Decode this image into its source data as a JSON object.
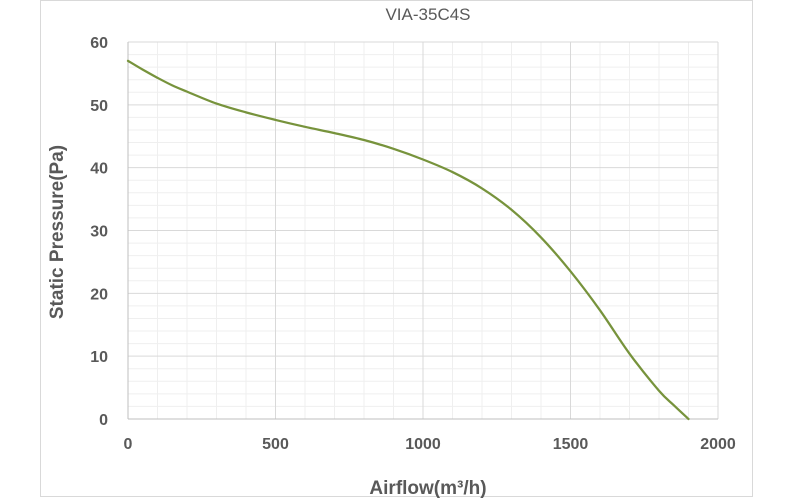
{
  "chart_data": {
    "type": "line",
    "title": "VIA-35C4S",
    "xlabel": "Airflow(m³/h)",
    "ylabel": "Static Pressure(Pa)",
    "xlim": [
      0,
      2000
    ],
    "ylim": [
      0,
      60
    ],
    "x_ticks": [
      0,
      500,
      1000,
      1500,
      2000
    ],
    "y_ticks": [
      0,
      10,
      20,
      30,
      40,
      50,
      60
    ],
    "grid": "major and minor",
    "legend": "none",
    "line_color": "#77933c",
    "series": [
      {
        "x": [
          0,
          50,
          100,
          150,
          200,
          300,
          400,
          500,
          600,
          700,
          800,
          900,
          1000,
          1100,
          1200,
          1300,
          1400,
          1500,
          1600,
          1700,
          1800,
          1850,
          1900
        ],
        "values": [
          57,
          55.6,
          54.3,
          53.1,
          52.1,
          50.2,
          48.8,
          47.6,
          46.5,
          45.5,
          44.4,
          43.0,
          41.3,
          39.3,
          36.7,
          33.3,
          28.9,
          23.5,
          17.3,
          10.4,
          4.5,
          2.2,
          0
        ]
      }
    ]
  }
}
